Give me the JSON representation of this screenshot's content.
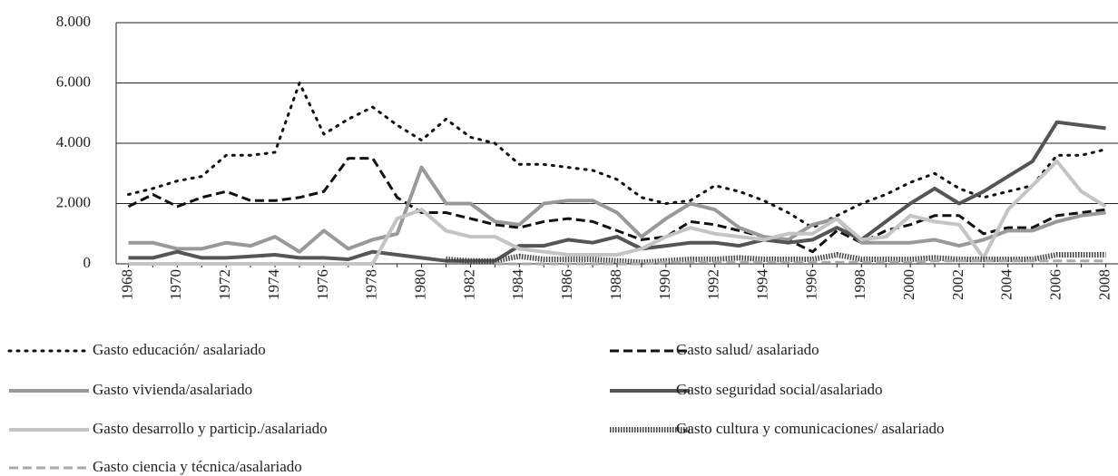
{
  "chart_data": {
    "type": "line",
    "categories": [
      "1968",
      null,
      "1970",
      null,
      "1972",
      null,
      "1974",
      null,
      "1976",
      null,
      "1978",
      null,
      "1980",
      null,
      "1982",
      null,
      "1984",
      null,
      "1986",
      null,
      "1988",
      null,
      "1990",
      null,
      "1992",
      null,
      "1994",
      null,
      "1996",
      null,
      "1998",
      null,
      "2000",
      null,
      "2002",
      null,
      "2004",
      null,
      "2006",
      null,
      "2008"
    ],
    "ylim": [
      0,
      8000
    ],
    "yticks": [
      0,
      {
        "value": 2000,
        "label": "2.000"
      },
      {
        "value": 4000,
        "label": "4.000"
      },
      {
        "value": 6000,
        "label": "6.000"
      },
      {
        "value": 8000,
        "label": "8.000"
      }
    ],
    "grid": true,
    "series": [
      {
        "name": "Gasto educación/ asalariado",
        "color": "#111111",
        "dash": "dot",
        "values": [
          2300,
          2500,
          2750,
          2900,
          3600,
          3600,
          3700,
          6000,
          4300,
          4800,
          5200,
          4600,
          4100,
          4800,
          4200,
          4000,
          3300,
          3300,
          3200,
          3100,
          2800,
          2200,
          2000,
          2100,
          2600,
          2400,
          2100,
          1700,
          1200,
          1600,
          2000,
          2300,
          2700,
          3000,
          2500,
          2200,
          2400,
          2600,
          3600,
          3600,
          3800
        ]
      },
      {
        "name": "Gasto salud/ asalariado",
        "color": "#111111",
        "dash": "dash",
        "values": [
          1900,
          2300,
          1900,
          2200,
          2400,
          2100,
          2100,
          2200,
          2400,
          3500,
          3500,
          2200,
          1700,
          1700,
          1500,
          1300,
          1200,
          1400,
          1500,
          1400,
          1100,
          800,
          900,
          1400,
          1300,
          1100,
          900,
          800,
          400,
          1100,
          700,
          1100,
          1300,
          1600,
          1600,
          1000,
          1200,
          1200,
          1600,
          1700,
          1800
        ]
      },
      {
        "name": "Gasto vivienda/asalariado",
        "color": "#999999",
        "dash": "solid",
        "values": [
          700,
          700,
          500,
          500,
          700,
          600,
          900,
          400,
          1100,
          500,
          800,
          1000,
          3200,
          2000,
          2000,
          1400,
          1300,
          2000,
          2100,
          2100,
          1700,
          900,
          1500,
          2000,
          1800,
          1200,
          900,
          800,
          1300,
          1500,
          700,
          700,
          700,
          800,
          600,
          800,
          1100,
          1100,
          1400,
          1600,
          1700
        ]
      },
      {
        "name": "Gasto seguridad social/asalariado",
        "color": "#555555",
        "dash": "solid",
        "values": [
          200,
          200,
          400,
          200,
          200,
          250,
          300,
          200,
          200,
          150,
          400,
          300,
          200,
          100,
          100,
          100,
          600,
          600,
          800,
          700,
          900,
          500,
          600,
          700,
          700,
          600,
          800,
          700,
          800,
          1200,
          800,
          1400,
          2000,
          2500,
          2000,
          2400,
          2900,
          3400,
          4700,
          4600,
          4500
        ]
      },
      {
        "name": "Gasto desarrollo y particip./asalariado",
        "color": "#c4c4c4",
        "dash": "solid",
        "values": [
          0,
          0,
          0,
          0,
          0,
          0,
          0,
          0,
          0,
          0,
          0,
          1500,
          1800,
          1100,
          900,
          900,
          500,
          400,
          300,
          300,
          300,
          500,
          900,
          1200,
          1000,
          900,
          800,
          1000,
          1000,
          1500,
          800,
          900,
          1600,
          1400,
          1300,
          200,
          1800,
          2600,
          3400,
          2400,
          1900
        ]
      },
      {
        "name": "Gasto cultura y comunicaciones/ asalariado",
        "color": "#444444",
        "dash": "hatch",
        "values": [
          null,
          null,
          null,
          null,
          null,
          null,
          null,
          null,
          null,
          null,
          null,
          null,
          null,
          150,
          100,
          100,
          250,
          150,
          150,
          150,
          100,
          50,
          100,
          150,
          150,
          200,
          150,
          150,
          150,
          300,
          150,
          150,
          150,
          200,
          150,
          150,
          150,
          150,
          300,
          300,
          300
        ]
      },
      {
        "name": "Gasto ciencia y técnica/asalariado",
        "color": "#aaaaaa",
        "dash": "dash",
        "values": [
          null,
          null,
          null,
          null,
          null,
          null,
          null,
          null,
          null,
          null,
          null,
          null,
          null,
          null,
          null,
          0,
          0,
          0,
          0,
          0,
          0,
          0,
          50,
          50,
          50,
          50,
          50,
          50,
          50,
          50,
          50,
          50,
          50,
          100,
          100,
          100,
          100,
          100,
          100,
          100,
          100
        ]
      }
    ]
  }
}
